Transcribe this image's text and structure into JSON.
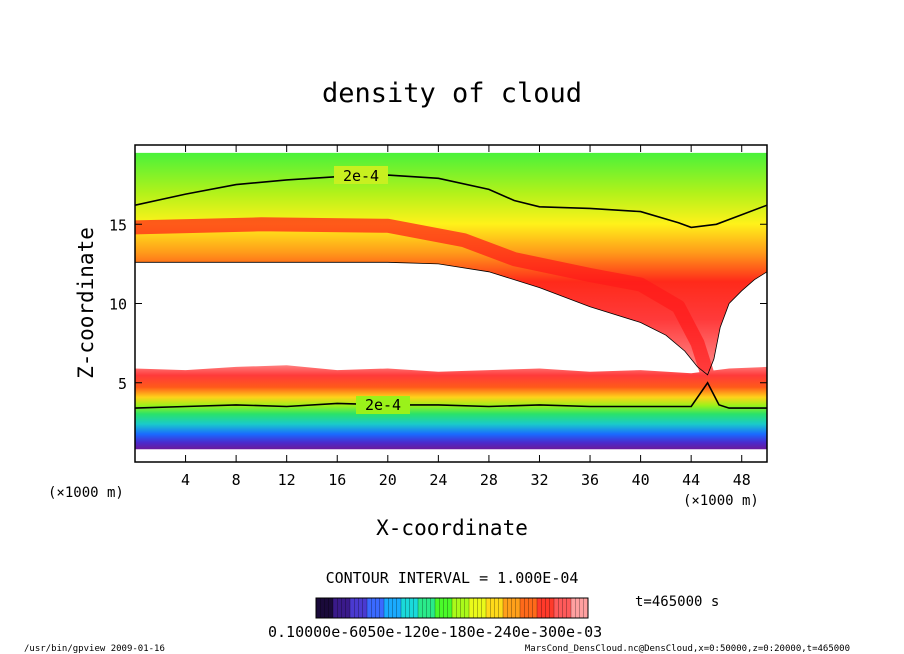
{
  "chart_data": {
    "type": "heatmap",
    "title": "density of cloud",
    "xlabel": "X-coordinate",
    "ylabel": "Z-coordinate",
    "x_unit_left": "(×1000 m)",
    "x_unit_right": "(×1000 m)",
    "xlim": [
      0,
      50
    ],
    "ylim": [
      0,
      20
    ],
    "x_ticks": [
      4,
      8,
      12,
      16,
      20,
      24,
      28,
      32,
      36,
      40,
      44,
      48
    ],
    "y_ticks": [
      5,
      10,
      15
    ],
    "contour_labels": [
      "2e-4",
      "2e-4"
    ],
    "contour_interval_text": "CONTOUR INTERVAL = 1.000E-04",
    "time_text": "t=465000 s",
    "colorbar_label_text": "0.10000e-6050e-120e-180e-240e-300e-03",
    "colorbar_colors": [
      "#1a0a3a",
      "#3a1a8a",
      "#4a3ad0",
      "#3a6aff",
      "#1aaaff",
      "#1adada",
      "#2aea8a",
      "#4afa2a",
      "#aafa1a",
      "#eafa1a",
      "#ffda1a",
      "#ffa01a",
      "#ff6a1a",
      "#ff3a2a",
      "#ff5a5a",
      "#ffa0a0"
    ],
    "upper_band": {
      "top": [
        [
          0,
          19.5
        ],
        [
          50,
          19.5
        ]
      ],
      "bottom": [
        [
          0,
          12.6
        ],
        [
          10,
          12.6
        ],
        [
          20,
          12.6
        ],
        [
          24,
          12.5
        ],
        [
          28,
          12.0
        ],
        [
          32,
          11.0
        ],
        [
          36,
          9.8
        ],
        [
          40,
          8.8
        ],
        [
          42,
          8.0
        ],
        [
          43.5,
          7.0
        ],
        [
          44.5,
          6.0
        ],
        [
          45.3,
          5.5
        ],
        [
          45.8,
          6.5
        ],
        [
          46.3,
          8.5
        ],
        [
          47,
          10.0
        ],
        [
          48,
          10.8
        ],
        [
          49,
          11.5
        ],
        [
          50,
          12.0
        ]
      ],
      "contour": [
        [
          0,
          16.2
        ],
        [
          4,
          16.9
        ],
        [
          8,
          17.5
        ],
        [
          12,
          17.8
        ],
        [
          16,
          18.0
        ],
        [
          20,
          18.1
        ],
        [
          24,
          17.9
        ],
        [
          28,
          17.2
        ],
        [
          30,
          16.5
        ],
        [
          32,
          16.1
        ],
        [
          36,
          16.0
        ],
        [
          40,
          15.8
        ],
        [
          43,
          15.1
        ],
        [
          44,
          14.8
        ],
        [
          46,
          15.0
        ],
        [
          48,
          15.6
        ],
        [
          50,
          16.2
        ]
      ],
      "core": [
        [
          0,
          14.8
        ],
        [
          10,
          15.0
        ],
        [
          20,
          14.9
        ],
        [
          26,
          14.0
        ],
        [
          30,
          12.8
        ],
        [
          36,
          11.8
        ],
        [
          40,
          11.2
        ],
        [
          43,
          9.8
        ],
        [
          44.5,
          7.5
        ],
        [
          45.3,
          5.5
        ]
      ]
    },
    "lower_band": {
      "top": [
        [
          0,
          5.9
        ],
        [
          4,
          5.8
        ],
        [
          8,
          6.0
        ],
        [
          12,
          6.1
        ],
        [
          16,
          5.8
        ],
        [
          20,
          5.9
        ],
        [
          24,
          5.7
        ],
        [
          28,
          5.8
        ],
        [
          32,
          5.9
        ],
        [
          36,
          5.7
        ],
        [
          40,
          5.8
        ],
        [
          44,
          5.6
        ],
        [
          47,
          5.9
        ],
        [
          50,
          6.0
        ]
      ],
      "contour": [
        [
          0,
          3.4
        ],
        [
          4,
          3.5
        ],
        [
          8,
          3.6
        ],
        [
          12,
          3.5
        ],
        [
          16,
          3.7
        ],
        [
          20,
          3.6
        ],
        [
          24,
          3.6
        ],
        [
          28,
          3.5
        ],
        [
          32,
          3.6
        ],
        [
          36,
          3.5
        ],
        [
          40,
          3.5
        ],
        [
          44,
          3.5
        ],
        [
          45.3,
          5.0
        ],
        [
          46.2,
          3.6
        ],
        [
          47,
          3.4
        ],
        [
          50,
          3.4
        ]
      ],
      "bottom": [
        [
          0,
          0.8
        ],
        [
          50,
          0.8
        ]
      ]
    }
  },
  "footer": {
    "left": "/usr/bin/gpview  2009-01-16",
    "right": "MarsCond_DensCloud.nc@DensCloud,x=0:50000,z=0:20000,t=465000"
  }
}
